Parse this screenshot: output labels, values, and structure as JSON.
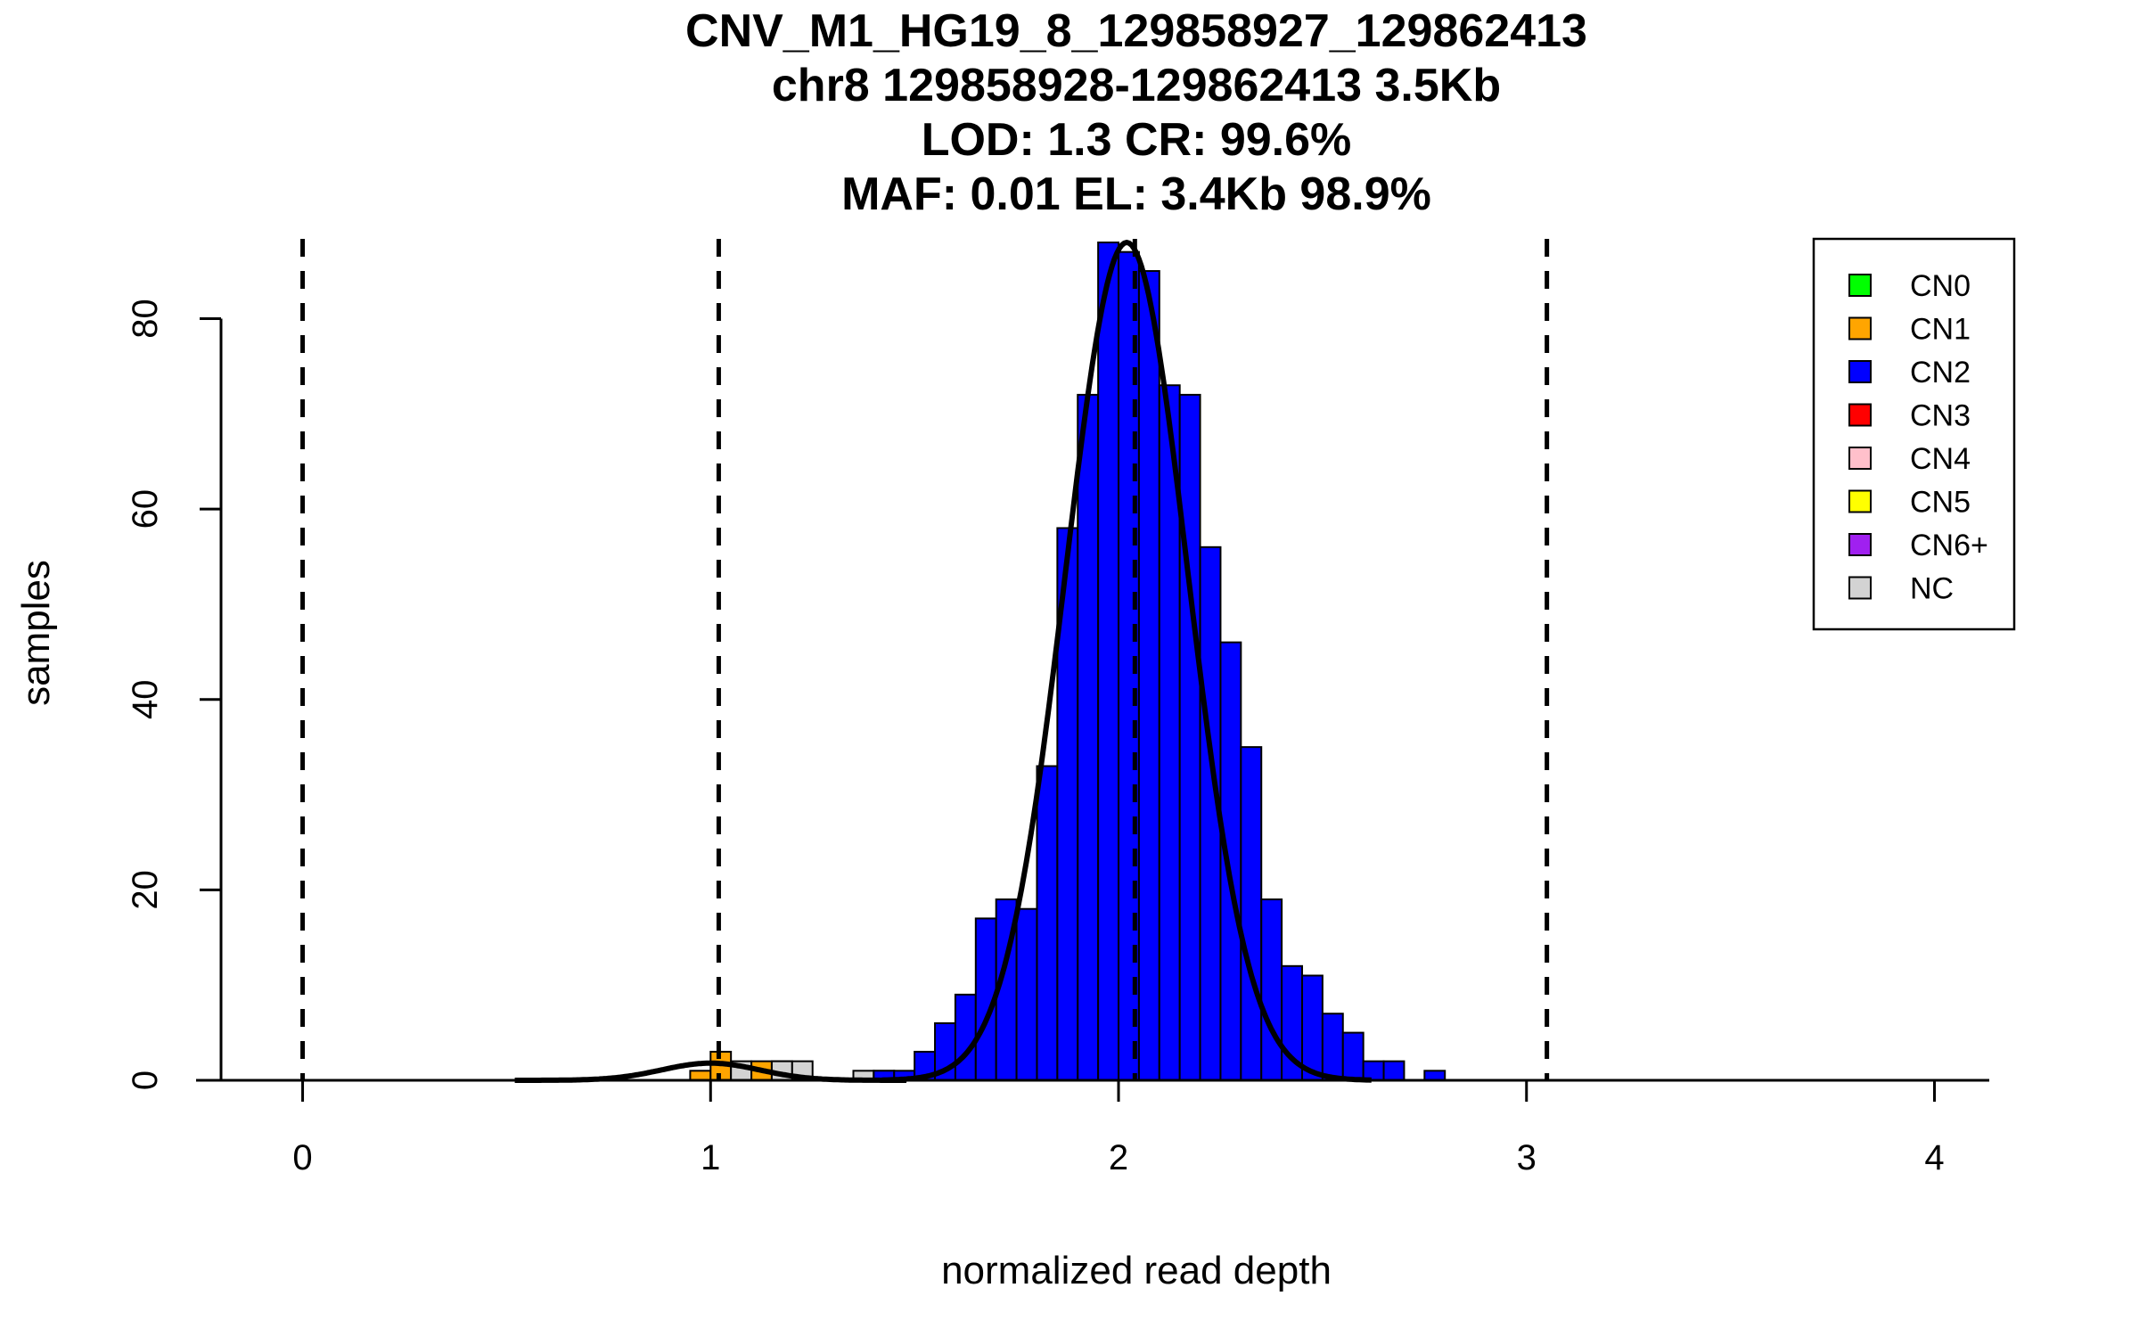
{
  "chart_data": {
    "type": "bar",
    "title_lines": [
      "CNV_M1_HG19_8_129858927_129862413",
      "chr8 129858928-129862413 3.5Kb",
      "LOD: 1.3 CR: 99.6%",
      "MAF: 0.01 EL: 3.4Kb 98.9%"
    ],
    "xlabel": "normalized read depth",
    "ylabel": "samples",
    "xlim": [
      -0.2,
      4.13
    ],
    "ylim": [
      0,
      88
    ],
    "x_ticks": [
      0,
      1,
      2,
      3,
      4
    ],
    "x_tick_labels": [
      "0",
      "1",
      "2",
      "3",
      "4"
    ],
    "y_ticks": [
      0,
      20,
      40,
      60,
      80
    ],
    "y_tick_labels": [
      "0",
      "20",
      "40",
      "60",
      "80"
    ],
    "bin_width": 0.05,
    "thresholds": [
      0,
      1.02,
      2.04,
      3.05
    ],
    "colors": {
      "CN0": "#00ff00",
      "CN1": "#ffa500",
      "CN2": "#0000ff",
      "CN3": "#ff0000",
      "CN4": "#ffc0cb",
      "CN5": "#ffff00",
      "CN6+": "#a020f0",
      "NC": "#d3d3d3"
    },
    "series": [
      {
        "name": "CN1",
        "bins": [
          {
            "x0": 0.95,
            "count": 1
          },
          {
            "x0": 1.0,
            "count": 3
          },
          {
            "x0": 1.05,
            "count": 1
          },
          {
            "x0": 1.1,
            "count": 2
          },
          {
            "x0": 1.15,
            "count": 2
          }
        ]
      },
      {
        "name": "NC",
        "bins": [
          {
            "x0": 1.05,
            "count": 2
          },
          {
            "x0": 1.15,
            "count": 2
          },
          {
            "x0": 1.2,
            "count": 2
          },
          {
            "x0": 1.35,
            "count": 1
          },
          {
            "x0": 1.4,
            "count": 1
          }
        ]
      },
      {
        "name": "CN2",
        "bins": [
          {
            "x0": 1.4,
            "count": 1
          },
          {
            "x0": 1.45,
            "count": 1
          },
          {
            "x0": 1.5,
            "count": 3
          },
          {
            "x0": 1.55,
            "count": 6
          },
          {
            "x0": 1.6,
            "count": 9
          },
          {
            "x0": 1.65,
            "count": 17
          },
          {
            "x0": 1.7,
            "count": 19
          },
          {
            "x0": 1.75,
            "count": 18
          },
          {
            "x0": 1.8,
            "count": 33
          },
          {
            "x0": 1.85,
            "count": 58
          },
          {
            "x0": 1.9,
            "count": 72
          },
          {
            "x0": 1.95,
            "count": 88
          },
          {
            "x0": 2.0,
            "count": 87
          },
          {
            "x0": 2.05,
            "count": 85
          },
          {
            "x0": 2.1,
            "count": 73
          },
          {
            "x0": 2.15,
            "count": 72
          },
          {
            "x0": 2.2,
            "count": 56
          },
          {
            "x0": 2.25,
            "count": 46
          },
          {
            "x0": 2.3,
            "count": 35
          },
          {
            "x0": 2.35,
            "count": 19
          },
          {
            "x0": 2.4,
            "count": 12
          },
          {
            "x0": 2.45,
            "count": 11
          },
          {
            "x0": 2.5,
            "count": 7
          },
          {
            "x0": 2.55,
            "count": 5
          },
          {
            "x0": 2.6,
            "count": 2
          },
          {
            "x0": 2.65,
            "count": 2
          },
          {
            "x0": 2.75,
            "count": 1
          }
        ]
      }
    ],
    "fit_curves": [
      {
        "mean": 2.02,
        "sd": 0.15,
        "peak": 88
      },
      {
        "mean": 1.0,
        "sd": 0.12,
        "peak": 1.8
      }
    ],
    "baseline_segments": [
      [
        -0.2,
        0.25
      ],
      [
        0.5,
        1.45
      ],
      [
        2.7,
        3.98
      ]
    ],
    "legend": {
      "position": "top-right",
      "entries": [
        "CN0",
        "CN1",
        "CN2",
        "CN3",
        "CN4",
        "CN5",
        "CN6+",
        "NC"
      ]
    }
  }
}
